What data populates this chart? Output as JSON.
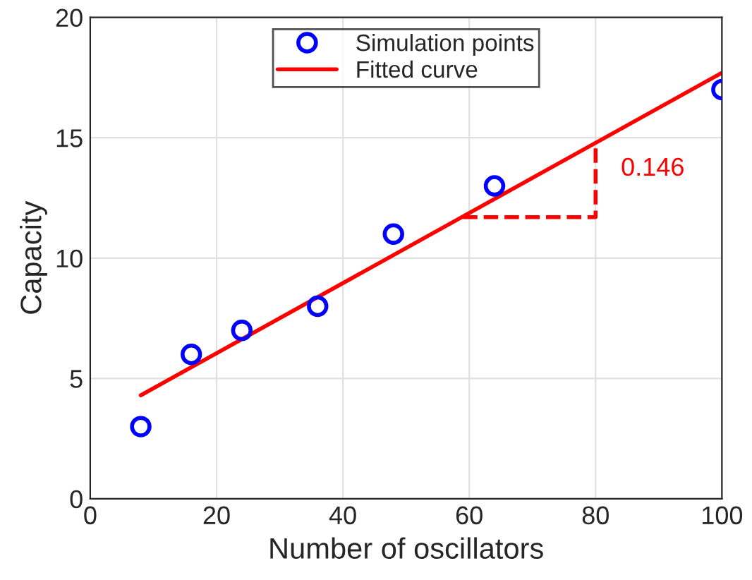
{
  "chart_data": {
    "type": "scatter",
    "xlabel": "Number of oscillators",
    "ylabel": "Capacity",
    "xlim": [
      0,
      100
    ],
    "xticks": [
      0,
      20,
      40,
      60,
      80,
      100
    ],
    "ylim": [
      0,
      20
    ],
    "yticks": [
      0,
      5,
      10,
      15,
      20
    ],
    "grid": true,
    "legend": "top",
    "series": [
      {
        "name": "Simulation points",
        "marker": "circle",
        "color": "#0000ff",
        "x": [
          8,
          16,
          24,
          36,
          48,
          64,
          100
        ],
        "values": [
          3,
          6,
          7,
          8,
          11,
          13,
          17
        ]
      },
      {
        "name": "Fitted curve",
        "type": "line",
        "line_style": "solid",
        "color": "#ff0000",
        "x": [
          8,
          100
        ],
        "values": [
          4.3,
          17.7
        ]
      },
      {
        "type": "line",
        "line_style": "dashed",
        "color": "#ff0000",
        "x": [
          59,
          80,
          80
        ],
        "values": [
          11.7,
          11.7,
          14.8
        ]
      }
    ],
    "annotations": [
      "0.146"
    ]
  }
}
